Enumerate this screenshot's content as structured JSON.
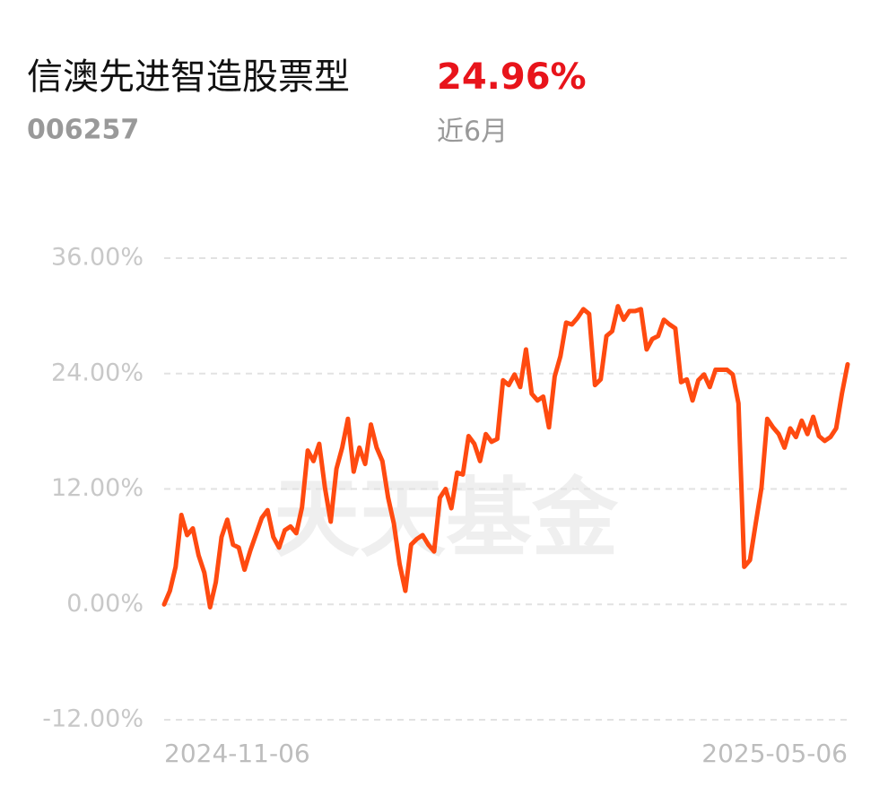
{
  "chart_data": {
    "type": "line",
    "title": "信澳先进智造股票型",
    "period_return": "24.96%",
    "code": "006257",
    "period": "近6月",
    "watermark": "天天基金",
    "categories": [
      "2024-11-06",
      null,
      null,
      null,
      null,
      null,
      null,
      null,
      null,
      null,
      null,
      null,
      null,
      null,
      null,
      null,
      null,
      null,
      null,
      null,
      null,
      null,
      null,
      null,
      null,
      null,
      null,
      null,
      null,
      null,
      null,
      null,
      null,
      null,
      null,
      null,
      null,
      null,
      null,
      null,
      null,
      null,
      null,
      null,
      null,
      null,
      null,
      null,
      null,
      null,
      null,
      null,
      null,
      null,
      null,
      null,
      null,
      null,
      null,
      null,
      null,
      null,
      null,
      null,
      null,
      null,
      null,
      null,
      null,
      null,
      null,
      null,
      null,
      null,
      null,
      null,
      null,
      null,
      null,
      null,
      null,
      null,
      null,
      null,
      null,
      null,
      null,
      null,
      null,
      null,
      null,
      null,
      null,
      null,
      null,
      null,
      null,
      null,
      null,
      null,
      null,
      null,
      null,
      null,
      null,
      null,
      null,
      null,
      null,
      null,
      null,
      null,
      null,
      null,
      null,
      null,
      null,
      null,
      null,
      "2025-05-06"
    ],
    "series": [
      {
        "color": "#ff4a10",
        "values": [
          0,
          1.4,
          3.9,
          9.3,
          7.2,
          7.9,
          5.1,
          3.3,
          -0.3,
          2.3,
          7.0,
          8.8,
          6.2,
          5.9,
          3.6,
          5.6,
          7.3,
          9.0,
          9.8,
          7.0,
          5.9,
          7.7,
          8.1,
          7.4,
          10.1,
          16.0,
          14.9,
          16.7,
          12.1,
          8.6,
          14.1,
          16.3,
          19.3,
          13.8,
          16.3,
          14.6,
          18.7,
          16.3,
          14.9,
          11.1,
          8.4,
          4.2,
          1.4,
          6.2,
          6.8,
          7.2,
          6.2,
          5.5,
          11.1,
          12.0,
          10.0,
          13.7,
          13.5,
          17.5,
          16.7,
          14.9,
          17.7,
          16.9,
          17.2,
          23.3,
          22.8,
          23.9,
          22.6,
          26.5,
          21.9,
          21.2,
          21.6,
          18.4,
          23.7,
          25.8,
          29.3,
          29.1,
          29.8,
          30.7,
          30.2,
          22.8,
          23.4,
          27.9,
          28.4,
          31.0,
          29.6,
          30.5,
          30.5,
          30.7,
          26.5,
          27.6,
          27.9,
          29.6,
          29.1,
          28.7,
          23.1,
          23.4,
          21.2,
          23.3,
          23.9,
          22.6,
          24.4,
          24.4,
          24.4,
          23.9,
          20.9,
          3.9,
          4.6,
          8.4,
          12.1,
          19.3,
          18.4,
          17.7,
          16.3,
          18.3,
          17.4,
          19.1,
          17.7,
          19.5,
          17.5,
          17.0,
          17.4,
          18.3,
          21.9,
          24.96
        ]
      }
    ],
    "ylim": [
      -12,
      36
    ],
    "yticks": [
      {
        "value": 36,
        "label": "36.00%"
      },
      {
        "value": 24,
        "label": "24.00%"
      },
      {
        "value": 12,
        "label": "12.00%"
      },
      {
        "value": 0,
        "label": "0.00%"
      },
      {
        "value": -12,
        "label": "-12.00%"
      }
    ],
    "grid": true
  }
}
